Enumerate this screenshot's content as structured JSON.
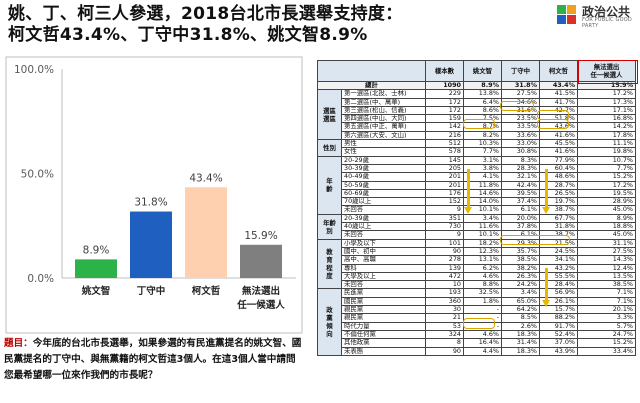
{
  "title": {
    "line1": "姚、丁、柯三人參選，2018台北市長選舉支持度：",
    "line2": "柯文哲43.4%、丁守中31.8%、姚文智8.9%"
  },
  "logo": {
    "text": "政治公共",
    "sub": "FOR PUBLIC GOOD PARTY"
  },
  "colors": {
    "yao": "#2db24a",
    "ding": "#1f5fbf",
    "ko": "#ffd0b0",
    "none": "#7f7f7f",
    "accent": "#c00000"
  },
  "chart_data": {
    "type": "bar",
    "categories": [
      "姚文智",
      "丁守中",
      "柯文哲",
      "無法選出\n任一候選人"
    ],
    "category_lines": [
      [
        "姚文智"
      ],
      [
        "丁守中"
      ],
      [
        "柯文哲"
      ],
      [
        "無法選出",
        "任一候選人"
      ]
    ],
    "values": [
      8.9,
      31.8,
      43.4,
      15.9
    ],
    "value_labels": [
      "8.9%",
      "31.8%",
      "43.4%",
      "15.9%"
    ],
    "y_ticks": [
      "0.0%",
      "50.0%",
      "100.0%"
    ],
    "y_tick_values": [
      0,
      50,
      100
    ],
    "ylim": [
      0,
      100
    ],
    "grid": false
  },
  "question": {
    "label": "題目：",
    "text": "今年底的台北市長選舉，如果參選的有民進黨提名的姚文智、國民黨提名的丁守中、與無黨籍的柯文哲這3個人。在這3個人當中請問您最希望哪一位來作我們的市長呢？"
  },
  "table": {
    "headers": [
      "",
      "",
      "樣本數",
      "姚文智",
      "丁守中",
      "柯文哲",
      "無法選出\n任一候選人"
    ],
    "total": {
      "label": "總計",
      "values": [
        "1090",
        "8.9%",
        "31.8%",
        "43.4%",
        "15.9%"
      ]
    },
    "groups": [
      {
        "name": "選區\n選區",
        "rows": [
          {
            "label": "第一選區(北投、士林)",
            "values": [
              "229",
              "13.8%",
              "27.5%",
              "41.5%",
              "17.2%"
            ]
          },
          {
            "label": "第二選區(中、萬華)",
            "values": [
              "172",
              "6.4%",
              "34.6%",
              "41.7%",
              "17.3%"
            ]
          },
          {
            "label": "第三選區(松山、信義)",
            "values": [
              "172",
              "8.6%",
              "31.6%",
              "42.7%",
              "17.1%"
            ]
          },
          {
            "label": "第四選區(中山、大同)",
            "values": [
              "159",
              "7.5%",
              "23.5%",
              "51.8%",
              "16.8%"
            ]
          },
          {
            "label": "第五選區(中正、萬華)",
            "values": [
              "142",
              "8.7%",
              "33.5%",
              "43.6%",
              "14.2%"
            ]
          },
          {
            "label": "第六選區(大安、文山)",
            "values": [
              "216",
              "8.2%",
              "33.6%",
              "41.6%",
              "17.8%"
            ]
          }
        ]
      },
      {
        "name": "性別",
        "rows": [
          {
            "label": "男性",
            "values": [
              "512",
              "10.3%",
              "33.0%",
              "45.5%",
              "11.1%"
            ]
          },
          {
            "label": "女性",
            "values": [
              "578",
              "7.7%",
              "30.8%",
              "41.6%",
              "19.8%"
            ]
          }
        ]
      },
      {
        "name": "年\n齡",
        "rows": [
          {
            "label": "20-29歲",
            "values": [
              "145",
              "3.1%",
              "8.3%",
              "77.9%",
              "10.7%"
            ]
          },
          {
            "label": "30-39歲",
            "values": [
              "205",
              "3.8%",
              "28.3%",
              "60.4%",
              "7.7%"
            ]
          },
          {
            "label": "40-49歲",
            "values": [
              "201",
              "4.1%",
              "32.1%",
              "48.6%",
              "15.2%"
            ]
          },
          {
            "label": "50-59歲",
            "values": [
              "201",
              "11.8%",
              "42.4%",
              "28.7%",
              "17.2%"
            ]
          },
          {
            "label": "60-69歲",
            "values": [
              "176",
              "14.6%",
              "39.5%",
              "26.5%",
              "19.5%"
            ]
          },
          {
            "label": "70歲以上",
            "values": [
              "152",
              "14.0%",
              "37.4%",
              "19.7%",
              "28.9%"
            ]
          },
          {
            "label": "未回答",
            "values": [
              "9",
              "10.1%",
              "6.1%",
              "38.7%",
              "45.0%"
            ]
          }
        ]
      },
      {
        "name": "年齡\n別",
        "rows": [
          {
            "label": "20-39歲",
            "values": [
              "351",
              "3.4%",
              "20.0%",
              "67.7%",
              "8.9%"
            ]
          },
          {
            "label": "40歲以上",
            "values": [
              "730",
              "11.6%",
              "37.8%",
              "31.8%",
              "18.8%"
            ]
          },
          {
            "label": "未回答",
            "values": [
              "9",
              "10.1%",
              "6.1%",
              "38.7%",
              "45.0%"
            ]
          }
        ]
      },
      {
        "name": "教\n育\n程\n度",
        "rows": [
          {
            "label": "小學及以下",
            "values": [
              "101",
              "18.2%",
              "29.3%",
              "21.5%",
              "31.1%"
            ]
          },
          {
            "label": "國中、初中",
            "values": [
              "90",
              "12.3%",
              "35.7%",
              "24.5%",
              "27.5%"
            ]
          },
          {
            "label": "高中、高職",
            "values": [
              "278",
              "13.1%",
              "38.5%",
              "34.1%",
              "14.3%"
            ]
          },
          {
            "label": "專科",
            "values": [
              "139",
              "6.2%",
              "38.2%",
              "43.2%",
              "12.4%"
            ]
          },
          {
            "label": "大學及以上",
            "values": [
              "472",
              "4.6%",
              "26.3%",
              "55.5%",
              "13.5%"
            ]
          },
          {
            "label": "未回答",
            "values": [
              "10",
              "8.8%",
              "24.2%",
              "28.4%",
              "38.5%"
            ]
          }
        ]
      },
      {
        "name": "政\n黨\n傾\n向",
        "rows": [
          {
            "label": "民進黨",
            "values": [
              "193",
              "32.5%",
              "3.4%",
              "56.9%",
              "7.1%"
            ]
          },
          {
            "label": "國民黨",
            "values": [
              "360",
              "1.8%",
              "65.0%",
              "26.1%",
              "7.1%"
            ]
          },
          {
            "label": "親民黨",
            "values": [
              "30",
              "-",
              "64.2%",
              "15.7%",
              "20.1%"
            ]
          },
          {
            "label": "親民黨",
            "values": [
              "21",
              "-",
              "8.5%",
              "88.2%",
              "3.3%"
            ]
          },
          {
            "label": "時代力量",
            "values": [
              "53",
              "-",
              "2.6%",
              "91.7%",
              "5.7%"
            ]
          },
          {
            "label": "不偏任何黨",
            "values": [
              "324",
              "4.6%",
              "18.3%",
              "52.4%",
              "24.7%"
            ]
          },
          {
            "label": "其他政黨",
            "values": [
              "8",
              "16.4%",
              "31.4%",
              "37.0%",
              "15.2%"
            ]
          },
          {
            "label": "未表態",
            "values": [
              "90",
              "4.4%",
              "18.3%",
              "43.9%",
              "33.4%"
            ]
          }
        ]
      }
    ]
  }
}
